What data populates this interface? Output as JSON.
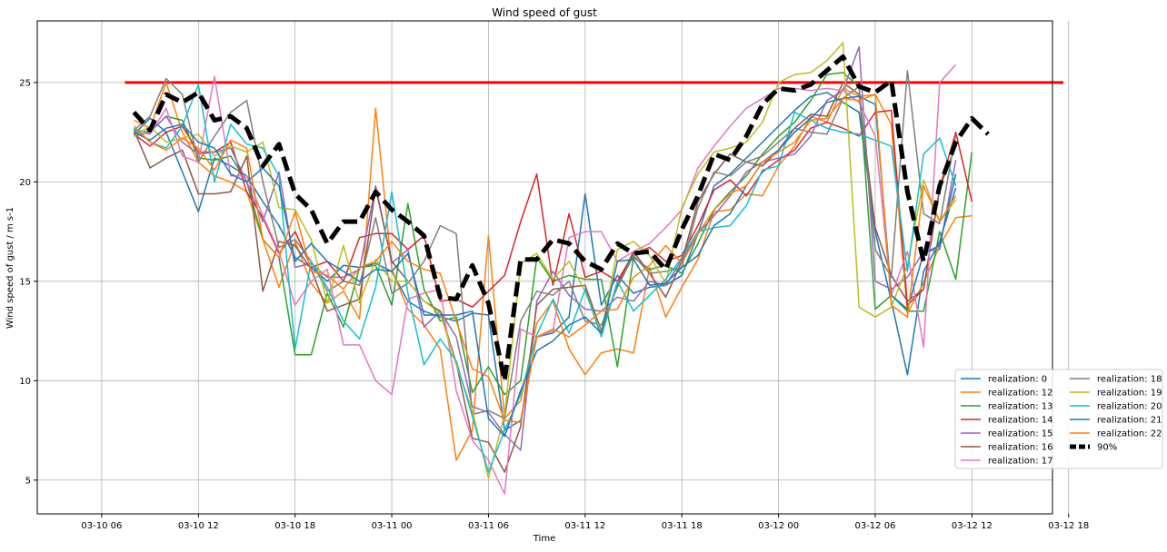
{
  "chart_data": {
    "type": "line",
    "title": "Wind speed of gust",
    "xlabel": "Time",
    "ylabel": "Wind speed of gust / m s-1",
    "grid": true,
    "legend_position": "lower-right",
    "xlim": [
      2.75,
      10.625
    ],
    "ylim": [
      3.3,
      28.1
    ],
    "x_ticks": [
      {
        "v": 3.25,
        "label": "03-10 06"
      },
      {
        "v": 4.0,
        "label": "03-10 12"
      },
      {
        "v": 4.75,
        "label": "03-10 18"
      },
      {
        "v": 5.5,
        "label": "03-11 00"
      },
      {
        "v": 6.25,
        "label": "03-11 06"
      },
      {
        "v": 7.0,
        "label": "03-11 12"
      },
      {
        "v": 7.75,
        "label": "03-11 18"
      },
      {
        "v": 8.5,
        "label": "03-12 00"
      },
      {
        "v": 9.25,
        "label": "03-12 06"
      },
      {
        "v": 10.0,
        "label": "03-12 12"
      },
      {
        "v": 10.75,
        "label": "03-12 18"
      }
    ],
    "y_ticks": [
      5,
      10,
      15,
      20,
      25
    ],
    "x_note": "x values are in units of 8 hours counted from 03-10 00 (e.g. 4.0 = 03-10 12)",
    "threshold": {
      "value": 25,
      "x_start": 3.43,
      "x_end": 10.71,
      "color": "#ff0000"
    },
    "series": [
      {
        "name": "realization: 0",
        "color": "#1f77b4",
        "x0": 3.5,
        "dx": 0.125,
        "values": [
          22.4,
          23.2,
          22.5,
          20.5,
          18.5,
          21.2,
          20.8,
          20.3,
          19.0,
          17.8,
          16.2,
          15.7,
          15.0,
          15.8,
          15.7,
          15.9,
          15.5,
          14.0,
          13.5,
          13.2,
          13.0,
          13.4,
          13.3,
          7.5,
          8.0,
          12.2,
          12.4,
          13.2,
          19.4,
          13.8,
          15.3,
          14.4,
          14.7,
          14.8,
          15.3,
          17.4,
          19.8,
          20.4,
          21.2,
          22.0,
          22.8,
          23.6,
          24.3,
          24.5,
          24.0,
          23.5,
          17.5,
          14.0,
          10.3,
          15.5,
          17.0,
          19.7
        ]
      },
      {
        "name": "realization: 12",
        "color": "#ff7f0e",
        "x0": 3.5,
        "dx": 0.125,
        "values": [
          23.1,
          22.7,
          25.0,
          22.5,
          21.0,
          20.3,
          20.0,
          19.5,
          17.1,
          14.7,
          17.0,
          14.9,
          13.9,
          14.5,
          13.1,
          23.7,
          15.6,
          13.6,
          12.8,
          11.6,
          6.0,
          7.5,
          17.3,
          8.1,
          9.0,
          12.9,
          14.0,
          11.6,
          10.3,
          11.4,
          11.6,
          11.4,
          15.7,
          13.2,
          14.7,
          16.1,
          18.5,
          18.6,
          19.4,
          19.3,
          20.8,
          21.8,
          23.3,
          23.0,
          24.7,
          24.3,
          24.4,
          22.9,
          13.4,
          14.9,
          16.8,
          18.2,
          18.3
        ]
      },
      {
        "name": "realization: 13",
        "color": "#2ca02c",
        "x0": 3.5,
        "dx": 0.125,
        "values": [
          22.6,
          22.5,
          23.3,
          23.1,
          21.2,
          21.1,
          21.3,
          20.0,
          17.1,
          16.2,
          11.3,
          11.3,
          14.4,
          12.7,
          15.7,
          15.8,
          13.8,
          18.9,
          14.6,
          13.0,
          13.2,
          9.4,
          10.7,
          9.3,
          10.0,
          16.2,
          15.0,
          15.3,
          15.1,
          15.1,
          10.7,
          16.2,
          15.6,
          15.8,
          15.4,
          16.9,
          18.6,
          19.5,
          20.3,
          21.4,
          22.3,
          23.0,
          24.1,
          25.4,
          25.5,
          24.8,
          13.6,
          14.3,
          13.5,
          13.5,
          17.5,
          15.1,
          21.5
        ]
      },
      {
        "name": "realization: 14",
        "color": "#d62728",
        "x0": 3.5,
        "dx": 0.125,
        "values": [
          22.4,
          21.8,
          22.5,
          22.8,
          21.5,
          21.5,
          22.0,
          19.5,
          18.2,
          16.4,
          17.5,
          15.7,
          16.0,
          15.0,
          17.2,
          17.4,
          17.4,
          16.6,
          17.3,
          14.0,
          14.1,
          13.7,
          14.5,
          15.3,
          18.0,
          20.4,
          14.8,
          18.4,
          15.2,
          15.5,
          15.0,
          16.4,
          16.7,
          16.0,
          16.3,
          17.8,
          19.6,
          20.1,
          19.3,
          20.5,
          21.1,
          21.6,
          22.7,
          23.0,
          22.7,
          22.3,
          23.5,
          23.6,
          13.8,
          14.6,
          19.7,
          22.5,
          19.0
        ]
      },
      {
        "name": "realization: 15",
        "color": "#9467bd",
        "x0": 3.5,
        "dx": 0.125,
        "values": [
          22.3,
          22.5,
          23.3,
          22.0,
          21.4,
          21.5,
          21.7,
          20.0,
          18.0,
          20.5,
          15.7,
          15.9,
          15.2,
          15.2,
          15.6,
          19.8,
          15.9,
          16.6,
          12.7,
          13.5,
          12.2,
          8.7,
          8.4,
          7.3,
          6.5,
          14.0,
          15.5,
          14.3,
          13.6,
          13.5,
          14.2,
          14.0,
          15.0,
          14.8,
          16.1,
          17.4,
          18.3,
          19.3,
          20.5,
          21.0,
          21.2,
          21.4,
          22.3,
          24.1,
          24.6,
          26.8,
          15.0,
          14.6,
          15.2,
          16.5,
          16.6,
          21.1
        ]
      },
      {
        "name": "realization: 16",
        "color": "#8c564b",
        "x0": 3.5,
        "dx": 0.125,
        "values": [
          22.6,
          20.7,
          21.2,
          21.6,
          19.4,
          19.4,
          19.5,
          21.3,
          14.5,
          17.0,
          16.8,
          15.6,
          13.5,
          13.8,
          14.1,
          19.7,
          16.0,
          15.0,
          14.0,
          13.5,
          10.9,
          7.1,
          6.9,
          5.4,
          7.7,
          13.8,
          14.6,
          14.7,
          14.8,
          12.5,
          14.8,
          16.5,
          15.4,
          14.2,
          16.0,
          19.0,
          20.4,
          21.4,
          21.0,
          20.8,
          21.6,
          22.7,
          23.4,
          23.3,
          25.0,
          24.4,
          17.7,
          15.3,
          14.0,
          14.6,
          19.7,
          21.8
        ]
      },
      {
        "name": "realization: 17",
        "color": "#e377c2",
        "x0": 3.5,
        "dx": 0.125,
        "values": [
          22.5,
          22.4,
          23.7,
          21.3,
          21.0,
          25.3,
          20.3,
          20.3,
          18.3,
          16.5,
          13.8,
          15.0,
          15.6,
          11.8,
          11.8,
          10.0,
          9.3,
          14.1,
          14.4,
          14.6,
          9.5,
          7.0,
          6.0,
          4.3,
          12.6,
          12.2,
          12.5,
          17.2,
          17.5,
          17.5,
          16.0,
          16.5,
          16.9,
          17.7,
          18.6,
          20.7,
          21.8,
          22.8,
          23.7,
          24.2,
          24.7,
          24.7,
          24.6,
          24.7,
          24.6,
          24.0,
          22.3,
          14.3,
          16.5,
          11.7,
          25.0,
          25.9
        ]
      },
      {
        "name": "realization: 18",
        "color": "#7f7f7f",
        "x0": 3.5,
        "dx": 0.125,
        "values": [
          22.6,
          23.3,
          25.2,
          24.4,
          21.0,
          22.3,
          23.5,
          24.1,
          20.0,
          16.7,
          17.1,
          16.0,
          14.5,
          15.0,
          14.8,
          18.2,
          14.4,
          14.9,
          16.0,
          17.8,
          17.4,
          8.3,
          8.5,
          8.1,
          13.0,
          14.5,
          14.3,
          15.0,
          13.0,
          12.8,
          14.7,
          16.3,
          15.4,
          15.5,
          15.7,
          18.7,
          20.5,
          20.3,
          21.0,
          21.3,
          22.0,
          22.7,
          22.5,
          22.4,
          24.2,
          24.8,
          16.6,
          15.2,
          25.6,
          18.4,
          17.9,
          22.4
        ]
      },
      {
        "name": "realization: 19",
        "color": "#bcbd22",
        "x0": 3.5,
        "dx": 0.125,
        "values": [
          22.3,
          22.8,
          22.0,
          22.2,
          22.4,
          21.3,
          21.8,
          21.5,
          22.0,
          18.7,
          18.6,
          17.1,
          13.9,
          16.8,
          13.9,
          16.1,
          15.0,
          15.0,
          14.0,
          13.4,
          10.8,
          8.5,
          5.1,
          8.3,
          15.9,
          16.4,
          15.1,
          16.0,
          14.5,
          12.4,
          16.6,
          17.0,
          16.3,
          14.9,
          18.7,
          20.4,
          21.5,
          21.7,
          22.0,
          23.0,
          25.0,
          25.4,
          25.5,
          26.1,
          27.0,
          13.7,
          13.2,
          13.7,
          15.8,
          20.1,
          18.0,
          19.1
        ]
      },
      {
        "name": "realization: 20",
        "color": "#17becf",
        "x0": 3.5,
        "dx": 0.125,
        "values": [
          22.7,
          22.0,
          21.7,
          22.8,
          24.9,
          20.0,
          22.9,
          21.9,
          21.7,
          20.3,
          11.6,
          16.0,
          14.7,
          13.0,
          12.1,
          14.7,
          19.5,
          14.4,
          10.8,
          12.1,
          11.0,
          8.2,
          5.4,
          7.5,
          9.3,
          12.3,
          14.1,
          12.4,
          14.6,
          12.2,
          15.0,
          13.5,
          14.3,
          15.1,
          16.2,
          17.5,
          17.7,
          17.8,
          18.8,
          20.6,
          20.8,
          23.5,
          23.1,
          22.7,
          22.5,
          22.4,
          22.1,
          21.8,
          15.5,
          21.4,
          22.2,
          19.8
        ]
      },
      {
        "name": "realization: 21",
        "color": "#1f77b4",
        "x0": 3.5,
        "dx": 0.125,
        "values": [
          22.5,
          22.1,
          22.7,
          22.9,
          22.0,
          21.7,
          20.4,
          20.0,
          20.7,
          19.8,
          16.0,
          16.9,
          16.0,
          15.5,
          15.0,
          15.6,
          15.5,
          16.4,
          13.3,
          13.3,
          13.3,
          13.5,
          8.1,
          7.2,
          9.5,
          11.5,
          12.0,
          12.8,
          13.2,
          12.4,
          16.0,
          16.1,
          14.8,
          14.9,
          15.7,
          16.3,
          17.8,
          18.4,
          19.8,
          21.0,
          21.6,
          22.5,
          23.2,
          24.0,
          24.2,
          24.3,
          23.9,
          14.3,
          13.6,
          16.4,
          16.8,
          20.4
        ]
      },
      {
        "name": "realization: 22",
        "color": "#ff7f0e",
        "x0": 3.5,
        "dx": 0.125,
        "values": [
          22.8,
          22.0,
          21.6,
          22.2,
          21.7,
          20.6,
          22.1,
          21.7,
          17.1,
          16.2,
          18.5,
          15.5,
          15.3,
          14.6,
          15.7,
          16.0,
          17.0,
          16.0,
          15.6,
          15.4,
          13.0,
          10.6,
          10.2,
          8.0,
          7.9,
          12.2,
          12.6,
          12.2,
          12.8,
          13.5,
          13.6,
          15.2,
          15.8,
          16.8,
          15.9,
          17.4,
          18.6,
          19.4,
          19.8,
          21.0,
          21.5,
          22.0,
          23.1,
          23.2,
          24.2,
          24.1,
          24.4,
          13.8,
          13.2,
          19.8,
          18.0,
          19.3
        ]
      },
      {
        "name": "90%",
        "color": "#000000",
        "dashed": true,
        "x0": 3.5,
        "dx": 0.125,
        "values": [
          23.5,
          22.6,
          24.4,
          24.0,
          24.5,
          23.1,
          23.3,
          22.7,
          20.8,
          21.9,
          19.4,
          18.6,
          16.9,
          18.0,
          18.0,
          19.5,
          18.6,
          18.0,
          17.3,
          14.2,
          14.1,
          15.8,
          13.9,
          10.0,
          16.1,
          16.1,
          17.1,
          16.9,
          16.0,
          15.6,
          16.9,
          16.4,
          16.5,
          15.6,
          17.6,
          19.3,
          21.4,
          21.1,
          22.3,
          23.9,
          24.7,
          24.6,
          24.9,
          25.6,
          26.3,
          24.8,
          24.5,
          25.1,
          19.5,
          16.0,
          19.8,
          22.0,
          23.2,
          22.4
        ]
      }
    ]
  }
}
